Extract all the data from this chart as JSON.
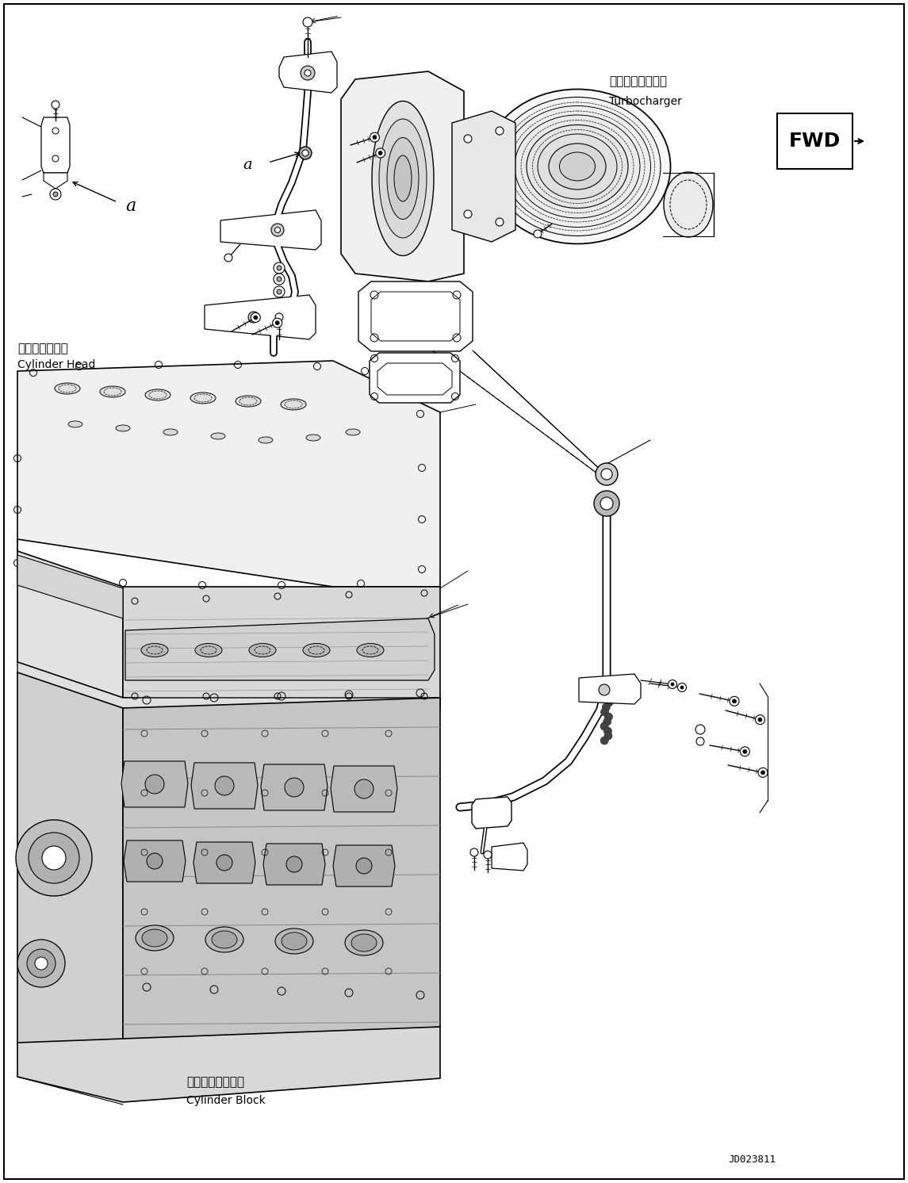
{
  "bg_color": "#ffffff",
  "figure_width": 11.45,
  "figure_height": 14.92,
  "dpi": 100,
  "labels": {
    "turbocharger_jp": "ターボチャージャ",
    "turbocharger_en": "Turbocharger",
    "cylinder_head_jp": "シリンダヘッド",
    "cylinder_head_en": "Cylinder Head",
    "cylinder_block_jp": "シリンダブロック",
    "cylinder_block_en": "Cylinder Block",
    "label_a": "a",
    "fwd": "FWD",
    "code": "JD023811"
  }
}
